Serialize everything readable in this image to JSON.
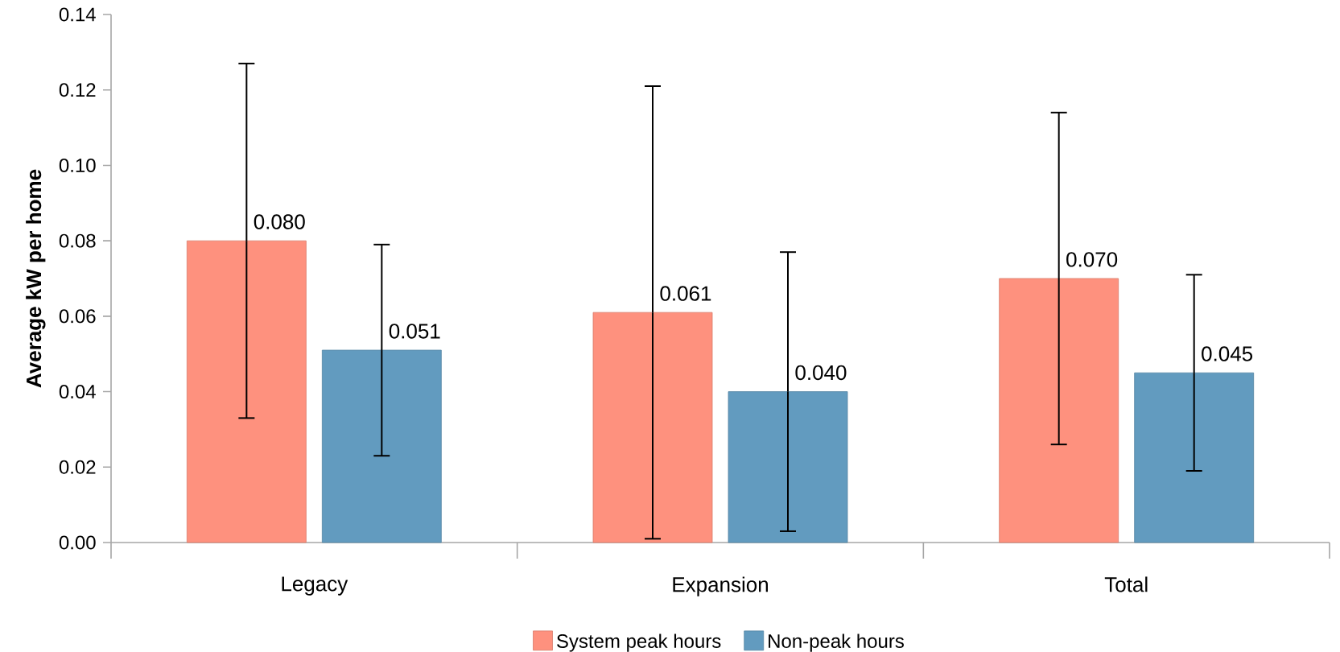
{
  "chart_data": {
    "type": "bar",
    "ylabel": "Average kW per home",
    "categories": [
      "Legacy",
      "Expansion",
      "Total"
    ],
    "series": [
      {
        "name": "System peak hours",
        "color": "#fe917e",
        "values": [
          0.08,
          0.061,
          0.07
        ],
        "errors": [
          0.047,
          0.06,
          0.044
        ],
        "value_labels": [
          "0.080",
          "0.061",
          "0.070"
        ]
      },
      {
        "name": "Non-peak hours",
        "color": "#629bbf",
        "values": [
          0.051,
          0.04,
          0.045
        ],
        "errors": [
          0.028,
          0.037,
          0.026
        ],
        "value_labels": [
          "0.051",
          "0.040",
          "0.045"
        ]
      }
    ],
    "ylim": [
      0,
      0.14
    ],
    "yticks": [
      {
        "value": 0,
        "label": "0.00"
      },
      {
        "value": 0.02,
        "label": "0.02"
      },
      {
        "value": 0.04,
        "label": "0.04"
      },
      {
        "value": 0.06,
        "label": "0.06"
      },
      {
        "value": 0.08,
        "label": "0.08"
      },
      {
        "value": 0.1,
        "label": "0.10"
      },
      {
        "value": 0.12,
        "label": "0.12"
      },
      {
        "value": 0.14,
        "label": "0.14"
      }
    ],
    "grid": false,
    "legend": "bottom"
  }
}
